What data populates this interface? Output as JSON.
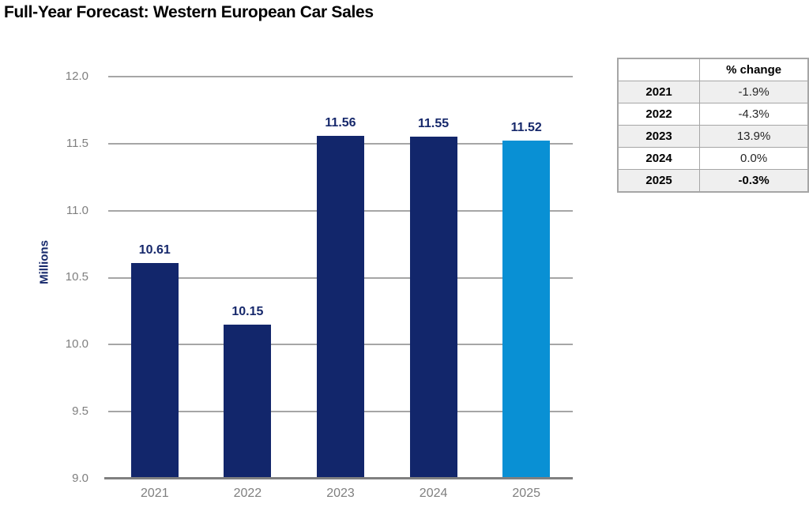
{
  "title": "Full-Year Forecast: Western European Car Sales",
  "chart_data": {
    "type": "bar",
    "title": "Full-Year Forecast: Western European Car Sales",
    "categories": [
      "2021",
      "2022",
      "2023",
      "2024",
      "2025"
    ],
    "values": [
      10.61,
      10.15,
      11.56,
      11.55,
      11.52
    ],
    "data_labels": [
      "10.61",
      "10.15",
      "11.56",
      "11.55",
      "11.52"
    ],
    "xlabel": "",
    "ylabel": "Millions",
    "ylim": [
      9.0,
      12.0
    ],
    "ytick_step": 0.5,
    "yticks": [
      "12.0",
      "11.5",
      "11.0",
      "10.5",
      "10.0",
      "9.5",
      "9.0"
    ],
    "grid": true,
    "legend": false,
    "bar_colors": [
      "#12266b",
      "#12266b",
      "#12266b",
      "#12266b",
      "#0990d4"
    ],
    "colors": {
      "bar_navy": "#12266b",
      "bar_light_blue": "#0990d4",
      "data_label": "#16286b",
      "gridline": "#a6a6a6",
      "axis_line": "#808080",
      "tick_label": "#7f7f7f"
    }
  },
  "table": {
    "header": [
      "",
      "% change"
    ],
    "rows": [
      {
        "year": "2021",
        "change": "-1.9%"
      },
      {
        "year": "2022",
        "change": "-4.3%"
      },
      {
        "year": "2023",
        "change": "13.9%"
      },
      {
        "year": "2024",
        "change": "0.0%"
      },
      {
        "year": "2025",
        "change": "-0.3%"
      }
    ]
  }
}
